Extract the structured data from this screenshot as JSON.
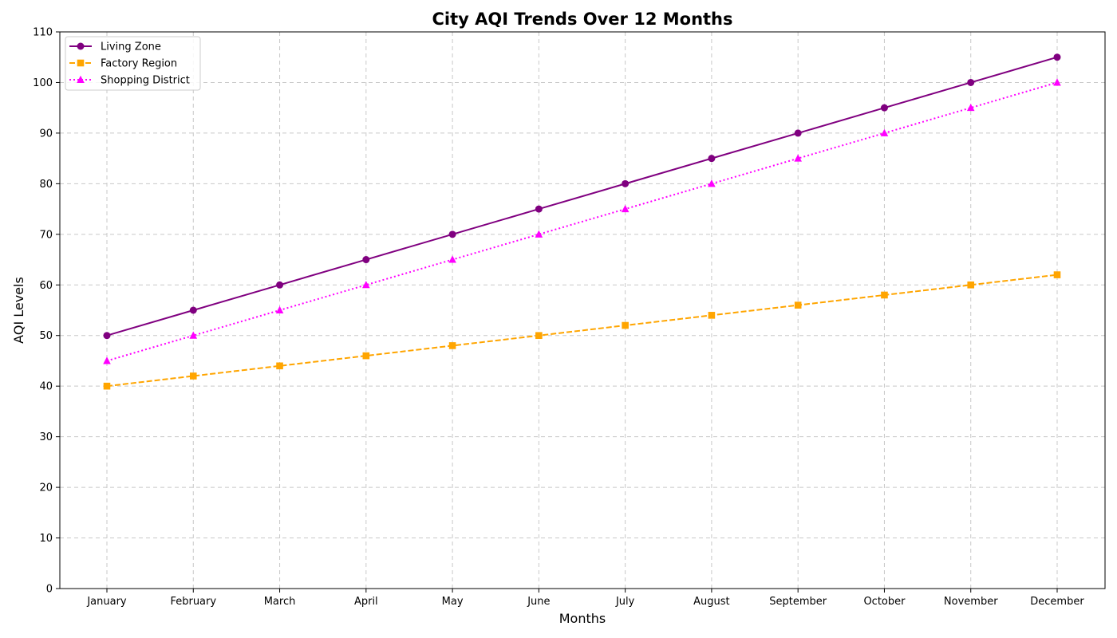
{
  "chart_data": {
    "type": "line",
    "title": "City AQI Trends Over 12 Months",
    "xlabel": "Months",
    "ylabel": "AQI Levels",
    "categories": [
      "January",
      "February",
      "March",
      "April",
      "May",
      "June",
      "July",
      "August",
      "September",
      "October",
      "November",
      "December"
    ],
    "ylim": [
      0,
      110
    ],
    "yticks": [
      0,
      10,
      20,
      30,
      40,
      50,
      60,
      70,
      80,
      90,
      100,
      110
    ],
    "grid": true,
    "legend_position": "top-left",
    "series": [
      {
        "name": "Living Zone",
        "color": "#800080",
        "marker": "circle",
        "line_style": "solid",
        "values": [
          50,
          55,
          60,
          65,
          70,
          75,
          80,
          85,
          90,
          95,
          100,
          105
        ]
      },
      {
        "name": "Factory Region",
        "color": "#FFA500",
        "marker": "square",
        "line_style": "dashed",
        "values": [
          40,
          42,
          44,
          46,
          48,
          50,
          52,
          54,
          56,
          58,
          60,
          62
        ]
      },
      {
        "name": "Shopping District",
        "color": "#FF00FF",
        "marker": "triangle",
        "line_style": "dotted",
        "values": [
          45,
          50,
          55,
          60,
          65,
          70,
          75,
          80,
          85,
          90,
          95,
          100
        ]
      }
    ]
  }
}
